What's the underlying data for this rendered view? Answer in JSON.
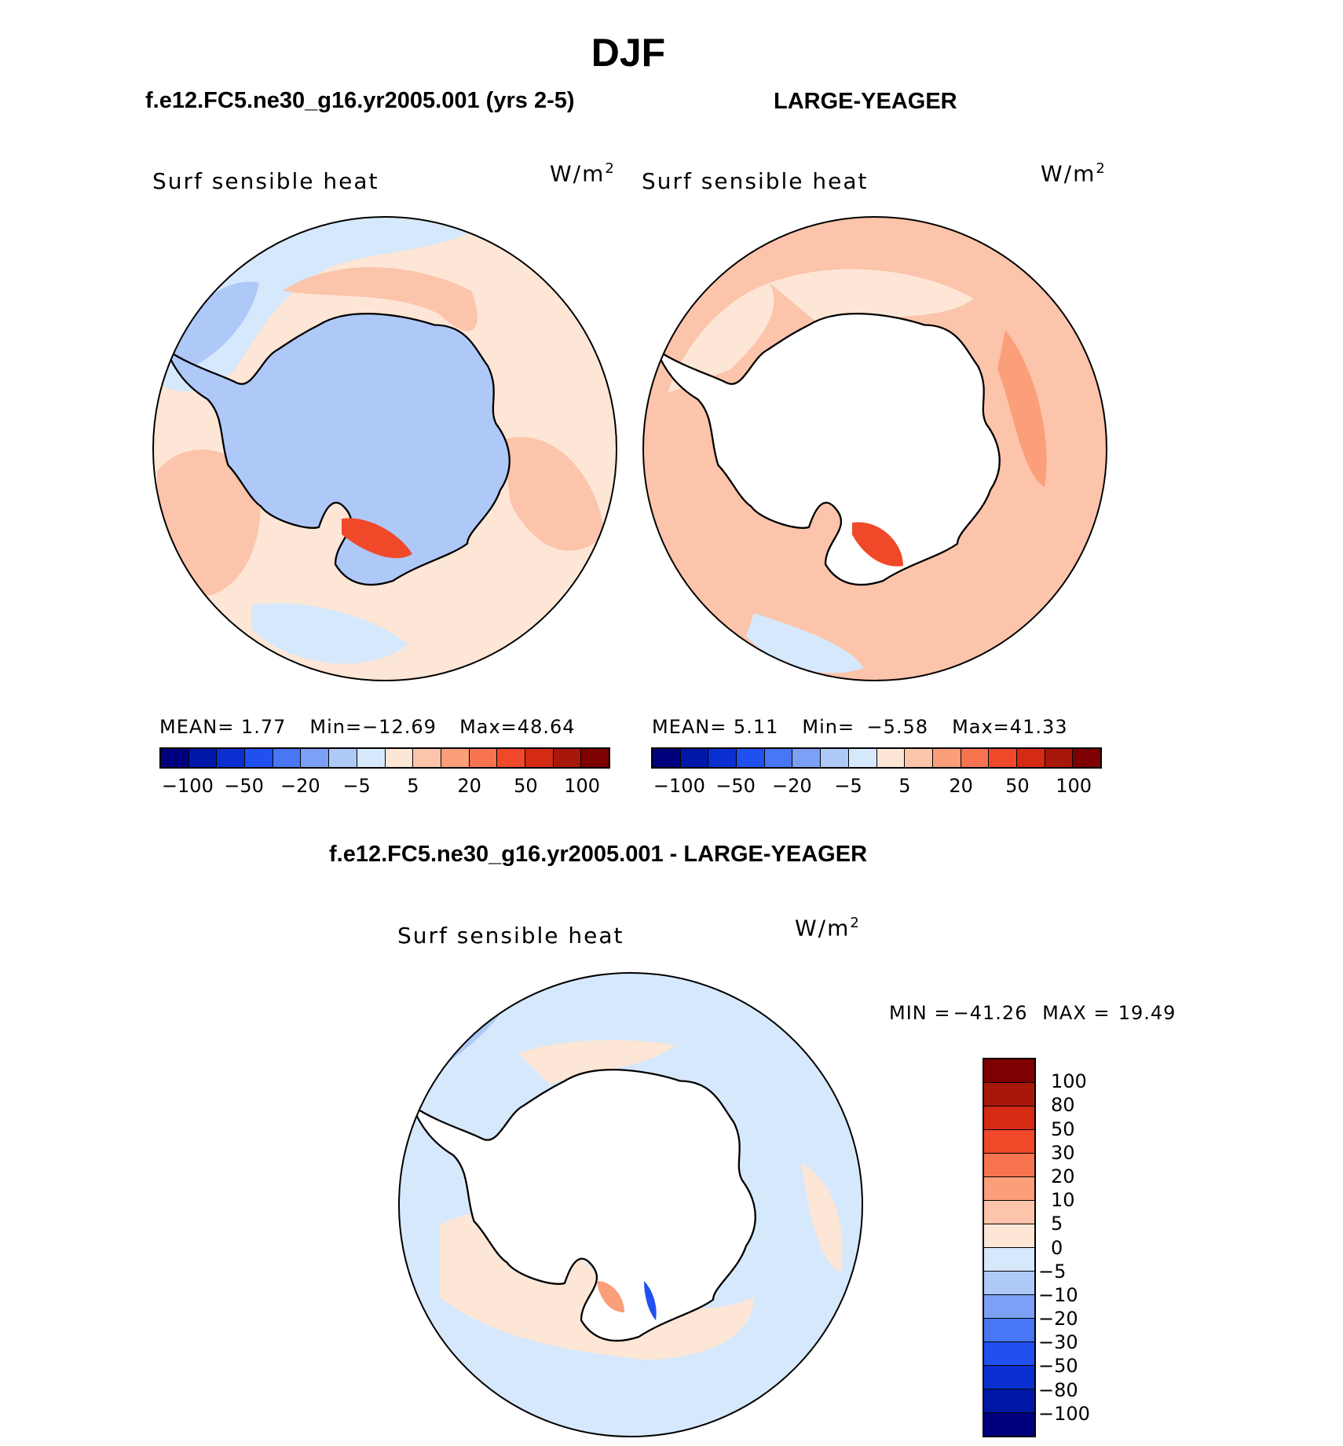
{
  "season": "DJF",
  "panel_left": {
    "case_title": "f.e12.FC5.ne30_g16.yr2005.001 (yrs 2-5)",
    "variable": "Surf sensible heat",
    "units": "W/m",
    "units_exp": "2",
    "mean_label": "MEAN=",
    "mean": "1.77",
    "min_label": "Min=",
    "min": "−12.69",
    "max_label": "Max=",
    "max": "48.64"
  },
  "panel_right": {
    "case_title": "LARGE-YEAGER",
    "variable": "Surf sensible heat",
    "units": "W/m",
    "units_exp": "2",
    "mean_label": "MEAN=",
    "mean": "5.11",
    "min_label": "Min=",
    "min": "−5.58",
    "max_label": "Max=",
    "max": "41.33"
  },
  "panel_diff": {
    "case_title": "f.e12.FC5.ne30_g16.yr2005.001 - LARGE-YEAGER",
    "variable": "Surf sensible heat",
    "units": "W/m",
    "units_exp": "2",
    "min_label": "MIN =",
    "min": "−41.26",
    "max_label": "MAX =",
    "max": "19.49"
  },
  "colorbar_top": {
    "colors": [
      "#00007f",
      "#0018a8",
      "#0a2fd0",
      "#2050f0",
      "#4876f5",
      "#7ba0f6",
      "#aec8f8",
      "#d6e8fb",
      "#fde6d6",
      "#fcc4aa",
      "#fb9e7a",
      "#f87350",
      "#f0492a",
      "#d52a14",
      "#a8180a",
      "#7f0000"
    ],
    "tick_labels": [
      "−100",
      "−50",
      "−20",
      "−5",
      "5",
      "20",
      "50",
      "100"
    ]
  },
  "colorbar_diff": {
    "colors": [
      "#7f0000",
      "#a8180a",
      "#d52a14",
      "#f0492a",
      "#f87350",
      "#fb9e7a",
      "#fcc4aa",
      "#fde6d6",
      "#d6e8fb",
      "#aec8f8",
      "#7ba0f6",
      "#4876f5",
      "#2050f0",
      "#0a2fd0",
      "#0018a8",
      "#00007f"
    ],
    "tick_labels": [
      "100",
      "80",
      "50",
      "30",
      "20",
      "10",
      "5",
      "0",
      "−5",
      "−10",
      "−20",
      "−30",
      "−50",
      "−80",
      "−100"
    ]
  },
  "map_colors": {
    "ocean_neutral_pos": "#fde6d6",
    "ocean_pos": "#fcc4aa",
    "ocean_pos_strong": "#fb9e7a",
    "ocean_pos_peak": "#f0492a",
    "ocean_neg": "#d6e8fb",
    "ocean_neg_strong": "#aec8f8",
    "ocean_neg_peak": "#7ba0f6",
    "land_missing": "#ffffff",
    "coast": "#000000"
  }
}
